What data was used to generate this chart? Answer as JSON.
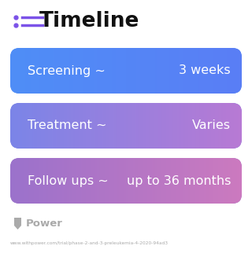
{
  "title": "Timeline",
  "background_color": "#ffffff",
  "rows": [
    {
      "label_left": "Screening ~",
      "label_right": "3 weeks",
      "gradient_start": "#4f8ef7",
      "gradient_end": "#5a7ef5"
    },
    {
      "label_left": "Treatment ~",
      "label_right": "Varies",
      "gradient_start": "#7b85e8",
      "gradient_end": "#b87ad4"
    },
    {
      "label_left": "Follow ups ~",
      "label_right": "up to 36 months",
      "gradient_start": "#9b72cc",
      "gradient_end": "#cc7abf"
    }
  ],
  "icon_color": "#7b52e8",
  "title_fontsize": 19,
  "row_fontsize": 11.5,
  "watermark": "Power",
  "watermark_color": "#aaaaaa",
  "url_text": "www.withpower.com/trial/phase-2-and-3-preleukemia-4-2020-94ad3",
  "url_color": "#aaaaaa"
}
